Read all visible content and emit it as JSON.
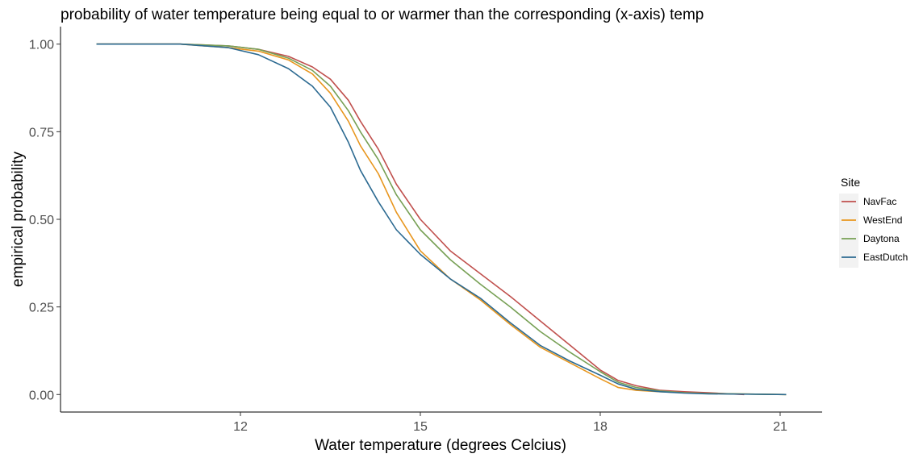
{
  "chart_data": {
    "type": "line",
    "title": "probability of water temperature being equal to or warmer than the corresponding (x-axis) temp",
    "xlabel": "Water temperature (degrees Celcius)",
    "ylabel": "empirical probability",
    "xlim": [
      9.0,
      21.7
    ],
    "ylim": [
      -0.05,
      1.05
    ],
    "x_ticks": [
      {
        "value": 12,
        "label": "12"
      },
      {
        "value": 15,
        "label": "15"
      },
      {
        "value": 18,
        "label": "18"
      },
      {
        "value": 21,
        "label": "21"
      }
    ],
    "y_ticks": [
      {
        "value": 0,
        "label": "0.00"
      },
      {
        "value": 0.25,
        "label": "0.25"
      },
      {
        "value": 0.5,
        "label": "0.50"
      },
      {
        "value": 0.75,
        "label": "0.75"
      },
      {
        "value": 1,
        "label": "1.00"
      }
    ],
    "grid": false,
    "legend": {
      "title": "Site",
      "position": "right"
    },
    "series": [
      {
        "name": "NavFac",
        "color": "#c0504d",
        "x": [
          9.6,
          11.0,
          11.8,
          12.3,
          12.8,
          13.2,
          13.5,
          13.8,
          14.0,
          14.3,
          14.6,
          15.0,
          15.5,
          16.0,
          16.5,
          17.0,
          17.5,
          18.0,
          18.3,
          18.6,
          19.0,
          19.4,
          19.8,
          20.4
        ],
        "y": [
          1.0,
          1.0,
          0.995,
          0.985,
          0.965,
          0.935,
          0.9,
          0.84,
          0.78,
          0.7,
          0.6,
          0.5,
          0.41,
          0.345,
          0.28,
          0.21,
          0.14,
          0.07,
          0.04,
          0.025,
          0.012,
          0.008,
          0.005,
          0.0
        ]
      },
      {
        "name": "WestEnd",
        "color": "#e8961e",
        "x": [
          9.6,
          11.0,
          11.8,
          12.3,
          12.8,
          13.2,
          13.5,
          13.8,
          14.0,
          14.3,
          14.6,
          15.0,
          15.5,
          16.0,
          16.5,
          17.0,
          17.5,
          18.0,
          18.3,
          18.6,
          19.0,
          19.4,
          19.8,
          21.1
        ],
        "y": [
          1.0,
          1.0,
          0.99,
          0.98,
          0.955,
          0.915,
          0.86,
          0.78,
          0.71,
          0.63,
          0.52,
          0.41,
          0.33,
          0.27,
          0.2,
          0.135,
          0.09,
          0.045,
          0.02,
          0.012,
          0.008,
          0.005,
          0.003,
          0.0
        ]
      },
      {
        "name": "Daytona",
        "color": "#77a055",
        "x": [
          9.6,
          11.0,
          11.8,
          12.3,
          12.8,
          13.2,
          13.5,
          13.8,
          14.0,
          14.3,
          14.6,
          15.0,
          15.5,
          16.0,
          16.5,
          17.0,
          17.5,
          18.0,
          18.3,
          18.6,
          19.0,
          19.4,
          19.8,
          21.1
        ],
        "y": [
          1.0,
          1.0,
          0.995,
          0.985,
          0.96,
          0.925,
          0.88,
          0.81,
          0.75,
          0.67,
          0.57,
          0.47,
          0.385,
          0.315,
          0.25,
          0.18,
          0.12,
          0.065,
          0.035,
          0.02,
          0.01,
          0.005,
          0.003,
          0.0
        ]
      },
      {
        "name": "EastDutch",
        "color": "#2c6a91",
        "x": [
          9.6,
          11.0,
          11.8,
          12.3,
          12.8,
          13.2,
          13.5,
          13.8,
          14.0,
          14.3,
          14.6,
          15.0,
          15.5,
          16.0,
          16.5,
          17.0,
          17.5,
          18.0,
          18.3,
          18.6,
          19.0,
          19.4,
          19.8,
          21.1
        ],
        "y": [
          1.0,
          1.0,
          0.99,
          0.97,
          0.93,
          0.88,
          0.82,
          0.72,
          0.64,
          0.55,
          0.47,
          0.4,
          0.33,
          0.275,
          0.205,
          0.14,
          0.095,
          0.055,
          0.03,
          0.015,
          0.008,
          0.004,
          0.002,
          0.0
        ]
      }
    ]
  }
}
